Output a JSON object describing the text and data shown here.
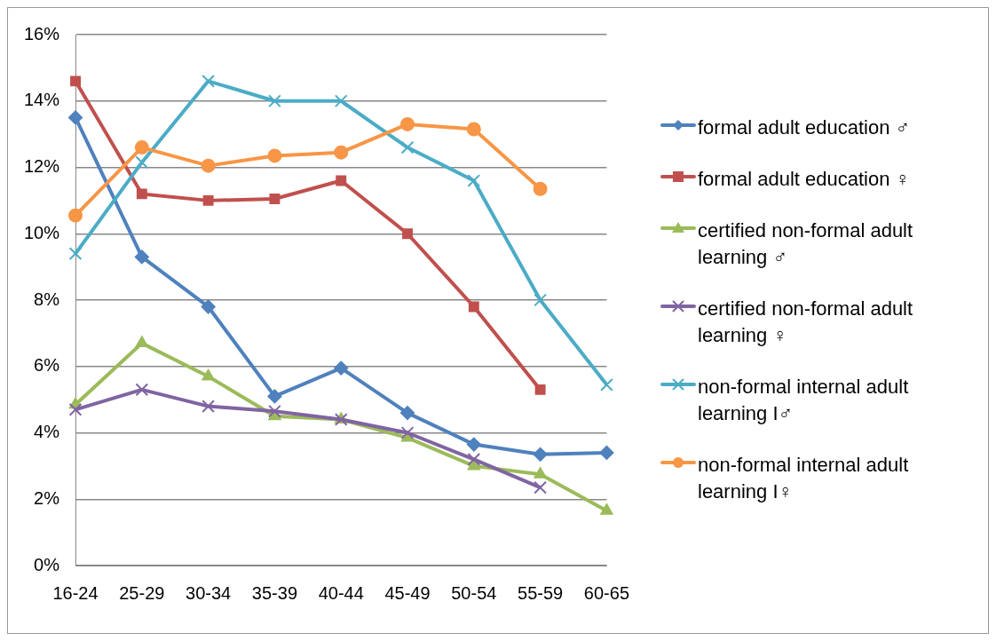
{
  "chart_data": {
    "type": "line",
    "categories": [
      "16-24",
      "25-29",
      "30-34",
      "35-39",
      "40-44",
      "45-49",
      "50-54",
      "55-59",
      "60-65"
    ],
    "ylim": [
      0,
      16
    ],
    "yticks": [
      {
        "value": 0,
        "label": "0%"
      },
      {
        "value": 2,
        "label": "2%"
      },
      {
        "value": 4,
        "label": "4%"
      },
      {
        "value": 6,
        "label": "6%"
      },
      {
        "value": 8,
        "label": "8%"
      },
      {
        "value": 10,
        "label": "10%"
      },
      {
        "value": 12,
        "label": "12%"
      },
      {
        "value": 14,
        "label": "14%"
      },
      {
        "value": 16,
        "label": "16%"
      }
    ],
    "grid": "y",
    "legend": "right",
    "line_style": "solid",
    "series": [
      {
        "name": "formal adult education ♂",
        "color": "#4f81bd",
        "marker": "diamond",
        "values": [
          13.5,
          9.3,
          7.8,
          5.1,
          5.95,
          4.6,
          3.65,
          3.35,
          3.4
        ]
      },
      {
        "name": "formal adult education ♀",
        "color": "#c0504d",
        "marker": "square",
        "values": [
          14.6,
          11.2,
          11.0,
          11.05,
          11.6,
          10.0,
          7.8,
          5.3,
          null
        ]
      },
      {
        "name": "certified non-formal adult learning ♂",
        "color": "#9bbb59",
        "marker": "triangle",
        "values": [
          4.85,
          6.7,
          5.7,
          4.5,
          4.4,
          3.85,
          3.0,
          2.75,
          1.65
        ]
      },
      {
        "name": "certified non-formal adult learning ♀",
        "color": "#8064a2",
        "marker": "cross",
        "values": [
          4.7,
          5.3,
          4.8,
          4.65,
          4.4,
          4.0,
          3.2,
          2.35,
          null
        ]
      },
      {
        "name": "non-formal internal adult learning I♂",
        "color": "#4bacc6",
        "marker": "cross",
        "values": [
          9.4,
          12.15,
          14.6,
          14.0,
          14.0,
          12.6,
          11.6,
          8.0,
          5.45
        ]
      },
      {
        "name": "non-formal internal adult learning I♀",
        "color": "#f79646",
        "marker": "circle",
        "values": [
          10.55,
          12.6,
          12.05,
          12.35,
          12.45,
          13.3,
          13.15,
          11.35,
          null
        ]
      }
    ]
  }
}
